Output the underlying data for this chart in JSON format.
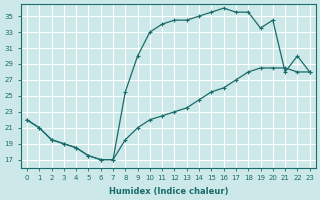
{
  "xlabel": "Humidex (Indice chaleur)",
  "bg_color": "#cce8e8",
  "grid_color": "#c0d8d8",
  "line_color": "#1a6b6b",
  "xlim": [
    -0.5,
    23.5
  ],
  "ylim": [
    16.0,
    36.5
  ],
  "xticks": [
    0,
    1,
    2,
    3,
    4,
    5,
    6,
    7,
    8,
    9,
    10,
    11,
    12,
    13,
    14,
    15,
    16,
    17,
    18,
    19,
    20,
    21,
    22,
    23
  ],
  "yticks": [
    17,
    19,
    21,
    23,
    25,
    27,
    29,
    31,
    33,
    35
  ],
  "curve1_x": [
    0,
    1,
    2,
    3,
    4,
    5,
    6,
    7,
    8,
    9,
    10,
    11,
    12,
    13,
    14,
    15,
    16,
    17,
    18,
    19,
    20,
    21,
    22,
    23
  ],
  "curve1_y": [
    22.0,
    21.0,
    19.5,
    19.0,
    18.5,
    17.5,
    17.0,
    17.0,
    25.5,
    30.0,
    33.0,
    34.0,
    34.5,
    34.5,
    35.0,
    35.5,
    36.0,
    35.5,
    35.5,
    33.5,
    34.5,
    28.0,
    30.0,
    28.0
  ],
  "curve2_x": [
    0,
    1,
    2,
    3,
    4,
    5,
    6,
    7,
    8,
    9,
    10,
    11,
    12,
    13,
    14,
    15,
    16,
    17,
    18,
    19,
    20,
    21,
    22,
    23
  ],
  "curve2_y": [
    22.0,
    21.0,
    19.5,
    19.0,
    18.5,
    17.5,
    17.0,
    17.0,
    19.5,
    21.0,
    22.0,
    22.5,
    23.0,
    23.5,
    24.5,
    25.5,
    26.0,
    27.0,
    28.0,
    28.5,
    28.5,
    28.5,
    28.0,
    28.0
  ]
}
